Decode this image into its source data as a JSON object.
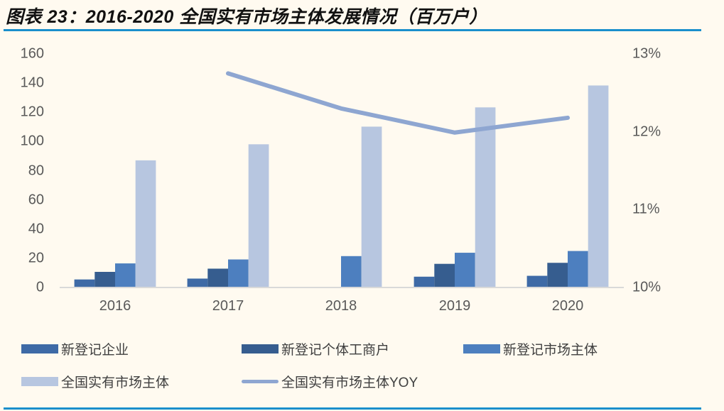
{
  "title": "图表 23：2016-2020 全国实有市场主体发展情况（百万户）",
  "colors": {
    "new_enterprise": "#3e6aa6",
    "new_individual": "#365d8f",
    "new_market_entity": "#4d7fbf",
    "total_market_entity": "#b7c6e0",
    "yoy_line": "#8ea6d1",
    "rule": "#1a8fcc",
    "axis": "#d9d9d9"
  },
  "left_axis": {
    "ticks": [
      "160",
      "140",
      "120",
      "100",
      "80",
      "60",
      "40",
      "20",
      "0"
    ]
  },
  "right_axis": {
    "ticks": [
      "13%",
      "12%",
      "11%",
      "10%"
    ]
  },
  "x_axis": {
    "ticks": [
      "2016",
      "2017",
      "2018",
      "2019",
      "2020"
    ]
  },
  "legend": [
    {
      "label": "新登记企业",
      "type": "bar",
      "color_key": "new_enterprise"
    },
    {
      "label": "新登记个体工商户",
      "type": "bar",
      "color_key": "new_individual"
    },
    {
      "label": "新登记市场主体",
      "type": "bar",
      "color_key": "new_market_entity"
    },
    {
      "label": "全国实有市场主体",
      "type": "bar",
      "color_key": "total_market_entity"
    },
    {
      "label": "全国实有市场主体YOY",
      "type": "line",
      "color_key": "yoy_line"
    }
  ],
  "chart_data": {
    "type": "bar",
    "title": "2016-2020 全国实有市场主体发展情况（百万户）",
    "xlabel": "",
    "ylabel": "百万户",
    "y2label": "YOY",
    "categories": [
      "2016",
      "2017",
      "2018",
      "2019",
      "2020"
    ],
    "ylim": [
      0,
      160
    ],
    "y2lim": [
      0.1,
      0.13
    ],
    "grid": false,
    "legend_position": "bottom",
    "series": [
      {
        "name": "新登记企业",
        "type": "bar",
        "axis": "left",
        "values": [
          5.5,
          6.1,
          null,
          7.4,
          8.0
        ]
      },
      {
        "name": "新登记个体工商户",
        "type": "bar",
        "axis": "left",
        "values": [
          10.7,
          12.9,
          null,
          16.2,
          16.9
        ]
      },
      {
        "name": "新登记市场主体",
        "type": "bar",
        "axis": "left",
        "values": [
          16.5,
          19.2,
          21.5,
          23.8,
          25.0
        ]
      },
      {
        "name": "全国实有市场主体",
        "type": "bar",
        "axis": "left",
        "values": [
          87.1,
          98.1,
          110.2,
          123.4,
          138.4
        ]
      },
      {
        "name": "全国实有市场主体YOY",
        "type": "line",
        "axis": "right",
        "values": [
          null,
          0.1275,
          0.123,
          0.1199,
          0.1218
        ]
      }
    ]
  }
}
